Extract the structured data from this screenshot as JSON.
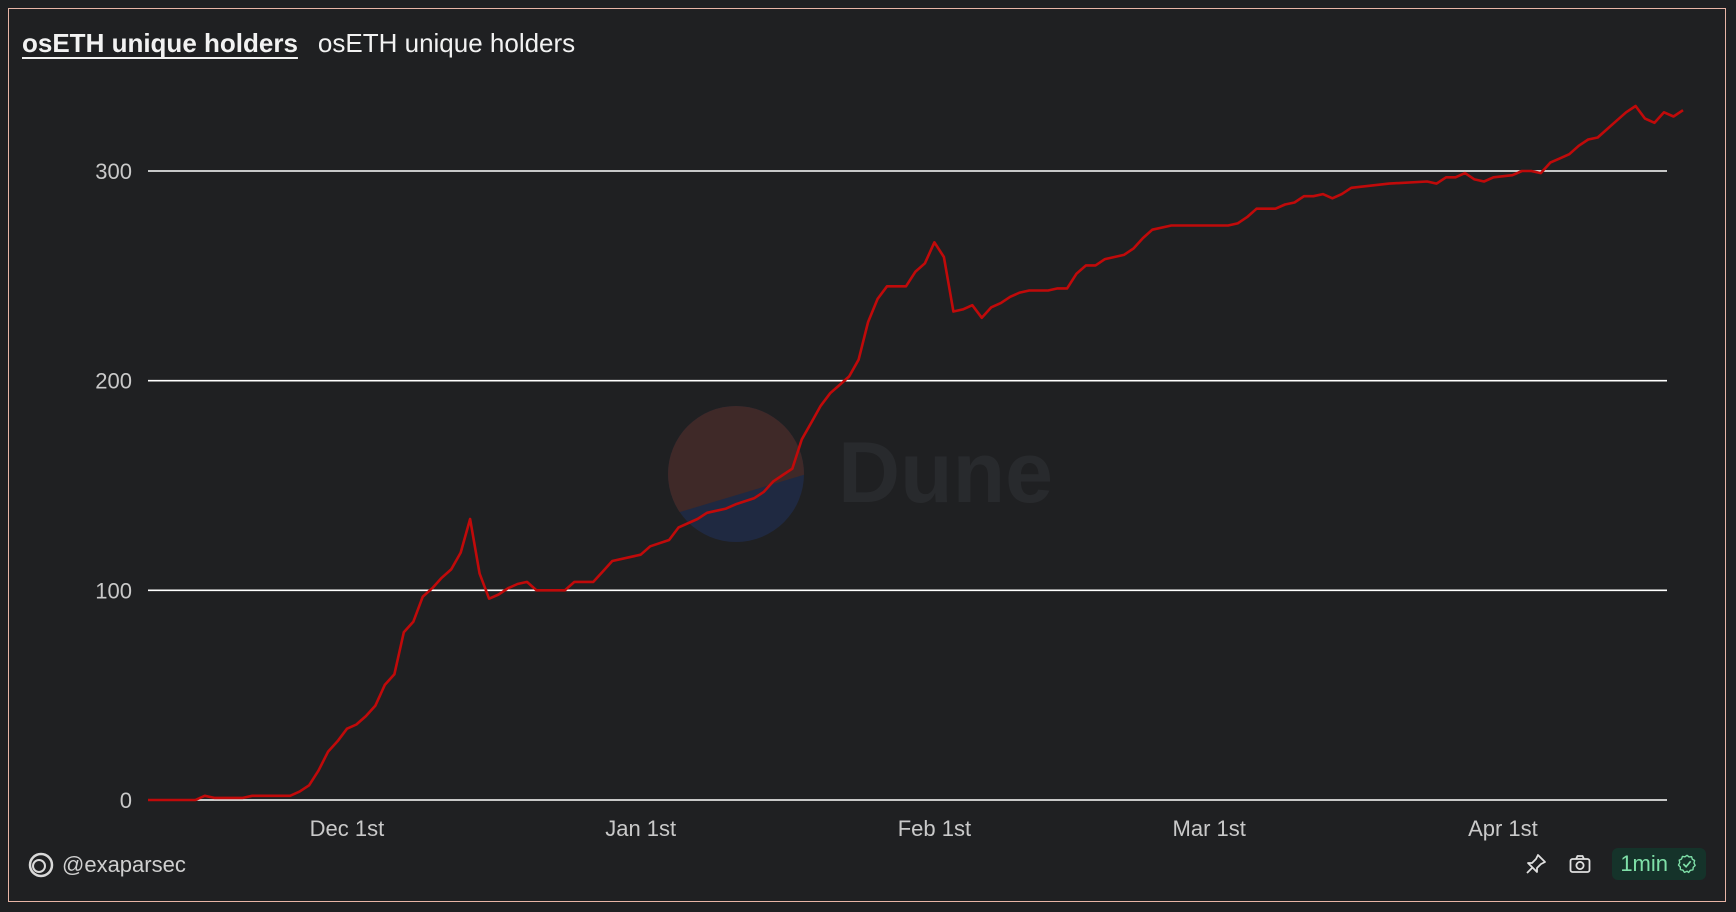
{
  "header": {
    "title_link": "osETH unique holders",
    "subtitle": "osETH unique holders"
  },
  "watermark": {
    "text": "Dune"
  },
  "footer": {
    "author": "@exaparsec",
    "refresh_label": "1min",
    "icons": [
      "pin-icon",
      "camera-icon",
      "check-circle-icon"
    ]
  },
  "colors": {
    "line": "#c00a0a",
    "grid": "#ffffff",
    "background": "#1f2022",
    "badge_bg": "#15332a",
    "badge_text": "#7fe0a8"
  },
  "chart_data": {
    "type": "line",
    "title": "osETH unique holders",
    "xlabel": "",
    "ylabel": "",
    "x_ticks": [
      "Dec 1st",
      "Jan 1st",
      "Feb 1st",
      "Mar 1st",
      "Apr 1st"
    ],
    "y_ticks": [
      0,
      100,
      200,
      300
    ],
    "ylim": [
      0,
      320
    ],
    "grid": true,
    "legend": "none",
    "series": [
      {
        "values": [
          {
            "x": "2023-11-10",
            "y": 0
          },
          {
            "x": "2023-11-15",
            "y": 0
          },
          {
            "x": "2023-11-16",
            "y": 2
          },
          {
            "x": "2023-11-17",
            "y": 1
          },
          {
            "x": "2023-11-20",
            "y": 1
          },
          {
            "x": "2023-11-21",
            "y": 2
          },
          {
            "x": "2023-11-25",
            "y": 2
          },
          {
            "x": "2023-11-26",
            "y": 4
          },
          {
            "x": "2023-11-27",
            "y": 7
          },
          {
            "x": "2023-11-28",
            "y": 14
          },
          {
            "x": "2023-11-29",
            "y": 23
          },
          {
            "x": "2023-11-30",
            "y": 28
          },
          {
            "x": "2023-12-01",
            "y": 34
          },
          {
            "x": "2023-12-02",
            "y": 36
          },
          {
            "x": "2023-12-03",
            "y": 40
          },
          {
            "x": "2023-12-04",
            "y": 45
          },
          {
            "x": "2023-12-05",
            "y": 55
          },
          {
            "x": "2023-12-06",
            "y": 60
          },
          {
            "x": "2023-12-07",
            "y": 80
          },
          {
            "x": "2023-12-08",
            "y": 85
          },
          {
            "x": "2023-12-09",
            "y": 97
          },
          {
            "x": "2023-12-10",
            "y": 101
          },
          {
            "x": "2023-12-11",
            "y": 106
          },
          {
            "x": "2023-12-12",
            "y": 110
          },
          {
            "x": "2023-12-13",
            "y": 118
          },
          {
            "x": "2023-12-14",
            "y": 134
          },
          {
            "x": "2023-12-15",
            "y": 108
          },
          {
            "x": "2023-12-16",
            "y": 96
          },
          {
            "x": "2023-12-17",
            "y": 98
          },
          {
            "x": "2023-12-18",
            "y": 101
          },
          {
            "x": "2023-12-19",
            "y": 103
          },
          {
            "x": "2023-12-20",
            "y": 104
          },
          {
            "x": "2023-12-21",
            "y": 100
          },
          {
            "x": "2023-12-24",
            "y": 100
          },
          {
            "x": "2023-12-25",
            "y": 104
          },
          {
            "x": "2023-12-27",
            "y": 104
          },
          {
            "x": "2023-12-28",
            "y": 109
          },
          {
            "x": "2023-12-29",
            "y": 114
          },
          {
            "x": "2023-12-31",
            "y": 116
          },
          {
            "x": "2024-01-01",
            "y": 117
          },
          {
            "x": "2024-01-02",
            "y": 121
          },
          {
            "x": "2024-01-04",
            "y": 124
          },
          {
            "x": "2024-01-05",
            "y": 130
          },
          {
            "x": "2024-01-07",
            "y": 134
          },
          {
            "x": "2024-01-08",
            "y": 137
          },
          {
            "x": "2024-01-10",
            "y": 139
          },
          {
            "x": "2024-01-11",
            "y": 141
          },
          {
            "x": "2024-01-13",
            "y": 144
          },
          {
            "x": "2024-01-14",
            "y": 147
          },
          {
            "x": "2024-01-15",
            "y": 152
          },
          {
            "x": "2024-01-16",
            "y": 155
          },
          {
            "x": "2024-01-17",
            "y": 158
          },
          {
            "x": "2024-01-18",
            "y": 172
          },
          {
            "x": "2024-01-19",
            "y": 180
          },
          {
            "x": "2024-01-20",
            "y": 188
          },
          {
            "x": "2024-01-21",
            "y": 194
          },
          {
            "x": "2024-01-22",
            "y": 198
          },
          {
            "x": "2024-01-23",
            "y": 202
          },
          {
            "x": "2024-01-24",
            "y": 210
          },
          {
            "x": "2024-01-25",
            "y": 228
          },
          {
            "x": "2024-01-26",
            "y": 239
          },
          {
            "x": "2024-01-27",
            "y": 245
          },
          {
            "x": "2024-01-29",
            "y": 245
          },
          {
            "x": "2024-01-30",
            "y": 252
          },
          {
            "x": "2024-01-31",
            "y": 256
          },
          {
            "x": "2024-02-01",
            "y": 266
          },
          {
            "x": "2024-02-02",
            "y": 259
          },
          {
            "x": "2024-02-03",
            "y": 233
          },
          {
            "x": "2024-02-04",
            "y": 234
          },
          {
            "x": "2024-02-05",
            "y": 236
          },
          {
            "x": "2024-02-06",
            "y": 230
          },
          {
            "x": "2024-02-07",
            "y": 235
          },
          {
            "x": "2024-02-08",
            "y": 237
          },
          {
            "x": "2024-02-09",
            "y": 240
          },
          {
            "x": "2024-02-10",
            "y": 242
          },
          {
            "x": "2024-02-11",
            "y": 243
          },
          {
            "x": "2024-02-13",
            "y": 243
          },
          {
            "x": "2024-02-14",
            "y": 244
          },
          {
            "x": "2024-02-15",
            "y": 244
          },
          {
            "x": "2024-02-16",
            "y": 251
          },
          {
            "x": "2024-02-17",
            "y": 255
          },
          {
            "x": "2024-02-18",
            "y": 255
          },
          {
            "x": "2024-02-19",
            "y": 258
          },
          {
            "x": "2024-02-21",
            "y": 260
          },
          {
            "x": "2024-02-22",
            "y": 263
          },
          {
            "x": "2024-02-23",
            "y": 268
          },
          {
            "x": "2024-02-24",
            "y": 272
          },
          {
            "x": "2024-02-26",
            "y": 274
          },
          {
            "x": "2024-03-03",
            "y": 274
          },
          {
            "x": "2024-03-04",
            "y": 275
          },
          {
            "x": "2024-03-05",
            "y": 278
          },
          {
            "x": "2024-03-06",
            "y": 282
          },
          {
            "x": "2024-03-08",
            "y": 282
          },
          {
            "x": "2024-03-09",
            "y": 284
          },
          {
            "x": "2024-03-10",
            "y": 285
          },
          {
            "x": "2024-03-11",
            "y": 288
          },
          {
            "x": "2024-03-12",
            "y": 288
          },
          {
            "x": "2024-03-13",
            "y": 289
          },
          {
            "x": "2024-03-14",
            "y": 287
          },
          {
            "x": "2024-03-15",
            "y": 289
          },
          {
            "x": "2024-03-16",
            "y": 292
          },
          {
            "x": "2024-03-18",
            "y": 293
          },
          {
            "x": "2024-03-20",
            "y": 294
          },
          {
            "x": "2024-03-24",
            "y": 295
          },
          {
            "x": "2024-03-25",
            "y": 294
          },
          {
            "x": "2024-03-26",
            "y": 297
          },
          {
            "x": "2024-03-27",
            "y": 297
          },
          {
            "x": "2024-03-28",
            "y": 299
          },
          {
            "x": "2024-03-29",
            "y": 296
          },
          {
            "x": "2024-03-30",
            "y": 295
          },
          {
            "x": "2024-03-31",
            "y": 297
          },
          {
            "x": "2024-04-02",
            "y": 298
          },
          {
            "x": "2024-04-03",
            "y": 300
          },
          {
            "x": "2024-04-04",
            "y": 300
          },
          {
            "x": "2024-04-05",
            "y": 299
          },
          {
            "x": "2024-04-06",
            "y": 304
          },
          {
            "x": "2024-04-07",
            "y": 306
          },
          {
            "x": "2024-04-08",
            "y": 308
          },
          {
            "x": "2024-04-09",
            "y": 312
          },
          {
            "x": "2024-04-10",
            "y": 315
          },
          {
            "x": "2024-04-11",
            "y": 316
          },
          {
            "x": "2024-04-12",
            "y": 320
          },
          {
            "x": "2024-04-13",
            "y": 324
          },
          {
            "x": "2024-04-14",
            "y": 328
          },
          {
            "x": "2024-04-15",
            "y": 331
          },
          {
            "x": "2024-04-16",
            "y": 325
          },
          {
            "x": "2024-04-17",
            "y": 323
          },
          {
            "x": "2024-04-18",
            "y": 328
          },
          {
            "x": "2024-04-19",
            "y": 326
          },
          {
            "x": "2024-04-20",
            "y": 329
          }
        ]
      }
    ]
  }
}
